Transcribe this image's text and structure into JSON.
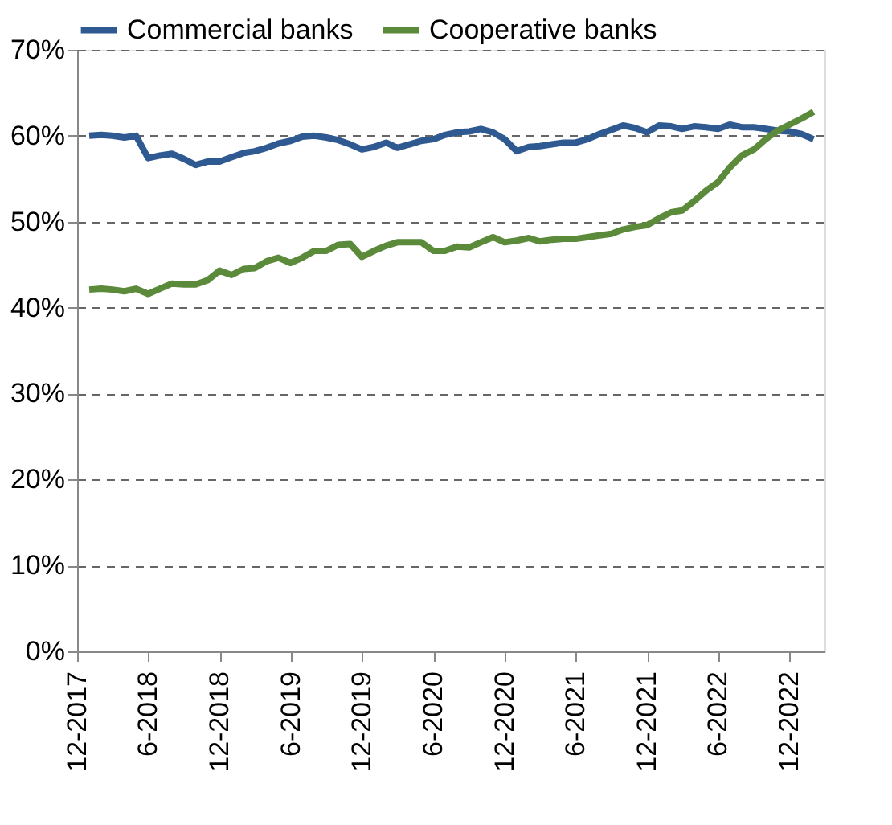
{
  "chart_data": {
    "type": "line",
    "x": [
      "2018-01",
      "2018-02",
      "2018-03",
      "2018-04",
      "2018-05",
      "2018-06",
      "2018-07",
      "2018-08",
      "2018-09",
      "2018-10",
      "2018-11",
      "2018-12",
      "2019-01",
      "2019-02",
      "2019-03",
      "2019-04",
      "2019-05",
      "2019-06",
      "2019-07",
      "2019-08",
      "2019-09",
      "2019-10",
      "2019-11",
      "2019-12",
      "2020-01",
      "2020-02",
      "2020-03",
      "2020-04",
      "2020-05",
      "2020-06",
      "2020-07",
      "2020-08",
      "2020-09",
      "2020-10",
      "2020-11",
      "2020-12",
      "2021-01",
      "2021-02",
      "2021-03",
      "2021-04",
      "2021-05",
      "2021-06",
      "2021-07",
      "2021-08",
      "2021-09",
      "2021-10",
      "2021-11",
      "2021-12",
      "2022-01",
      "2022-02",
      "2022-03",
      "2022-04",
      "2022-05",
      "2022-06",
      "2022-07",
      "2022-08",
      "2022-09",
      "2022-10",
      "2022-11",
      "2022-12",
      "2023-01",
      "2023-02"
    ],
    "series": [
      {
        "name": "Commercial banks",
        "color": "#2e5a91",
        "values": [
          60.0,
          60.1,
          60.0,
          59.8,
          60.0,
          57.4,
          57.7,
          57.9,
          57.3,
          56.6,
          57.0,
          57.0,
          57.5,
          58.0,
          58.2,
          58.6,
          59.1,
          59.4,
          59.9,
          60.0,
          59.8,
          59.5,
          59.0,
          58.4,
          58.7,
          59.2,
          58.6,
          59.0,
          59.4,
          59.6,
          60.1,
          60.4,
          60.5,
          60.8,
          60.4,
          59.6,
          58.2,
          58.7,
          58.8,
          59.0,
          59.2,
          59.2,
          59.6,
          60.2,
          60.7,
          61.2,
          60.9,
          60.4,
          61.2,
          61.1,
          60.8,
          61.1,
          61.0,
          60.8,
          61.3,
          61.0,
          61.0,
          60.8,
          60.6,
          60.5,
          60.2,
          59.6
        ]
      },
      {
        "name": "Cooperative banks",
        "color": "#5a8a3a",
        "values": [
          42.1,
          42.2,
          42.1,
          41.9,
          42.2,
          41.6,
          42.2,
          42.8,
          42.7,
          42.7,
          43.2,
          44.3,
          43.8,
          44.5,
          44.6,
          45.4,
          45.8,
          45.2,
          45.8,
          46.6,
          46.6,
          47.3,
          47.4,
          45.9,
          46.6,
          47.2,
          47.6,
          47.6,
          47.6,
          46.6,
          46.6,
          47.1,
          47.0,
          47.6,
          48.2,
          47.6,
          47.8,
          48.1,
          47.7,
          47.9,
          48.0,
          48.0,
          48.2,
          48.4,
          48.6,
          49.1,
          49.4,
          49.6,
          50.4,
          51.1,
          51.3,
          52.4,
          53.6,
          54.6,
          56.3,
          57.7,
          58.4,
          59.6,
          60.6,
          61.3,
          62.0,
          62.8
        ]
      }
    ],
    "xlim": [
      "2017-12",
      "2023-03"
    ],
    "xticks": [
      {
        "value": "2017-12",
        "label": "12-2017"
      },
      {
        "value": "2018-06",
        "label": "6-2018"
      },
      {
        "value": "2018-12",
        "label": "12-2018"
      },
      {
        "value": "2019-06",
        "label": "6-2019"
      },
      {
        "value": "2019-12",
        "label": "12-2019"
      },
      {
        "value": "2020-06",
        "label": "6-2020"
      },
      {
        "value": "2020-12",
        "label": "12-2020"
      },
      {
        "value": "2021-06",
        "label": "6-2021"
      },
      {
        "value": "2021-12",
        "label": "12-2021"
      },
      {
        "value": "2022-06",
        "label": "6-2022"
      },
      {
        "value": "2022-12",
        "label": "12-2022"
      }
    ],
    "ylim": [
      0,
      70
    ],
    "yticks": [
      {
        "value": 0,
        "label": "0%"
      },
      {
        "value": 10,
        "label": "10%"
      },
      {
        "value": 20,
        "label": "20%"
      },
      {
        "value": 30,
        "label": "30%"
      },
      {
        "value": 40,
        "label": "40%"
      },
      {
        "value": 50,
        "label": "50%"
      },
      {
        "value": 60,
        "label": "60%"
      },
      {
        "value": 70,
        "label": "70%"
      }
    ],
    "grid": "y",
    "legend": "top",
    "marker": "none",
    "line_style": "solid"
  }
}
